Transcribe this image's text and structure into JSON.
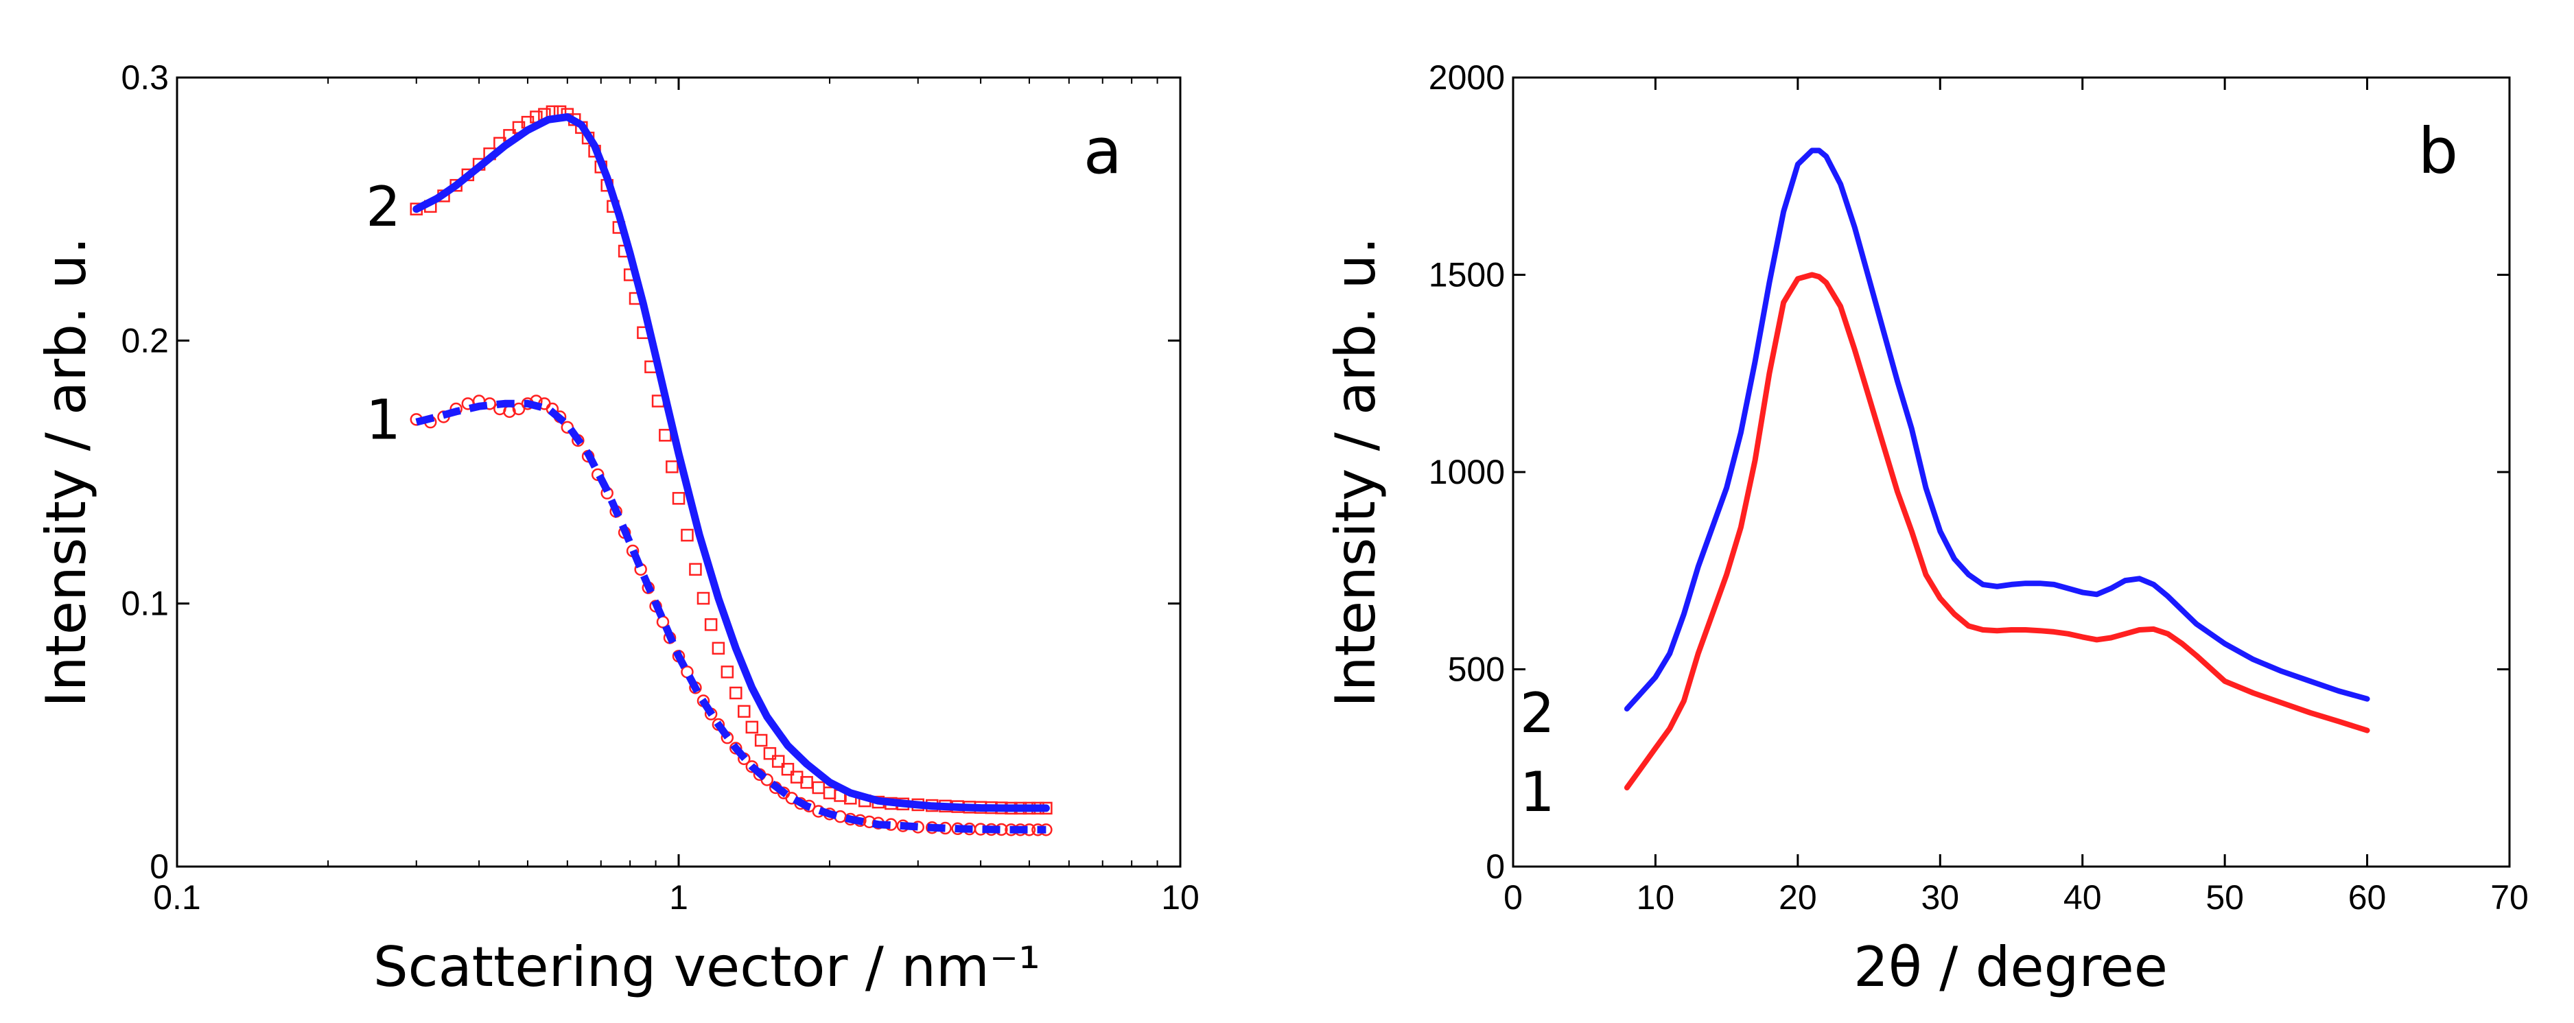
{
  "colors": {
    "fit": "#1a1aff",
    "data": "#ff2020",
    "axis": "#000000",
    "background": "#ffffff"
  },
  "chart_data": [
    {
      "id": "a",
      "type": "scatter",
      "panel_label": "a",
      "xlabel": "Scattering vector / nm⁻¹",
      "ylabel": "Intensity / arb. u.",
      "xscale": "log",
      "xlim": [
        0.1,
        10
      ],
      "ylim": [
        0,
        0.3
      ],
      "xticks": [
        0.1,
        1,
        10
      ],
      "xtick_labels": [
        "0.1",
        "1",
        "10"
      ],
      "yticks": [
        0,
        0.1,
        0.2,
        0.3
      ],
      "ytick_labels": [
        "0",
        "0.1",
        "0.2",
        "0.3"
      ],
      "curve_labels": [
        {
          "text": "2",
          "x": 0.29,
          "y": 0.251
        },
        {
          "text": "1",
          "x": 0.29,
          "y": 0.17
        }
      ],
      "series": [
        {
          "name": "1 (data)",
          "marker": "circle",
          "color": "#ff2020",
          "x": [
            0.3,
            0.32,
            0.34,
            0.36,
            0.38,
            0.4,
            0.42,
            0.44,
            0.46,
            0.48,
            0.5,
            0.52,
            0.54,
            0.56,
            0.58,
            0.6,
            0.63,
            0.66,
            0.69,
            0.72,
            0.75,
            0.78,
            0.81,
            0.84,
            0.87,
            0.9,
            0.93,
            0.96,
            1.0,
            1.04,
            1.08,
            1.12,
            1.16,
            1.2,
            1.25,
            1.3,
            1.35,
            1.4,
            1.45,
            1.5,
            1.56,
            1.62,
            1.68,
            1.75,
            1.82,
            1.9,
            2.0,
            2.1,
            2.2,
            2.3,
            2.4,
            2.5,
            2.65,
            2.8,
            3.0,
            3.2,
            3.4,
            3.6,
            3.8,
            4.0,
            4.2,
            4.4,
            4.6,
            4.8,
            5.0,
            5.2,
            5.4
          ],
          "y": [
            0.17,
            0.169,
            0.171,
            0.174,
            0.176,
            0.177,
            0.176,
            0.174,
            0.173,
            0.174,
            0.176,
            0.177,
            0.176,
            0.174,
            0.171,
            0.167,
            0.162,
            0.156,
            0.149,
            0.142,
            0.135,
            0.127,
            0.12,
            0.113,
            0.106,
            0.099,
            0.093,
            0.087,
            0.08,
            0.074,
            0.068,
            0.063,
            0.058,
            0.054,
            0.049,
            0.045,
            0.041,
            0.038,
            0.035,
            0.033,
            0.03,
            0.028,
            0.026,
            0.024,
            0.023,
            0.021,
            0.02,
            0.019,
            0.018,
            0.0175,
            0.017,
            0.0165,
            0.016,
            0.0155,
            0.015,
            0.0148,
            0.0146,
            0.0144,
            0.0143,
            0.0142,
            0.0141,
            0.0141,
            0.014,
            0.014,
            0.014,
            0.014,
            0.014
          ]
        },
        {
          "name": "1 (fit)",
          "line": "dashed",
          "color": "#1a1aff",
          "x": [
            0.3,
            0.33,
            0.36,
            0.4,
            0.45,
            0.5,
            0.55,
            0.6,
            0.66,
            0.72,
            0.78,
            0.85,
            0.92,
            1.0,
            1.1,
            1.2,
            1.3,
            1.4,
            1.5,
            1.65,
            1.8,
            2.0,
            2.2,
            2.5,
            2.8,
            3.2,
            3.6,
            4.0,
            4.5,
            5.0,
            5.4
          ],
          "y": [
            0.169,
            0.171,
            0.173,
            0.175,
            0.176,
            0.176,
            0.174,
            0.168,
            0.157,
            0.143,
            0.128,
            0.111,
            0.096,
            0.08,
            0.065,
            0.054,
            0.045,
            0.038,
            0.033,
            0.027,
            0.023,
            0.02,
            0.018,
            0.016,
            0.0155,
            0.0148,
            0.0144,
            0.0142,
            0.014,
            0.014,
            0.014
          ]
        },
        {
          "name": "2 (data)",
          "marker": "square",
          "color": "#ff2020",
          "x": [
            0.3,
            0.32,
            0.34,
            0.36,
            0.38,
            0.4,
            0.42,
            0.44,
            0.46,
            0.48,
            0.5,
            0.52,
            0.54,
            0.56,
            0.58,
            0.6,
            0.62,
            0.64,
            0.66,
            0.68,
            0.7,
            0.72,
            0.74,
            0.76,
            0.78,
            0.8,
            0.82,
            0.85,
            0.88,
            0.91,
            0.94,
            0.97,
            1.0,
            1.04,
            1.08,
            1.12,
            1.16,
            1.2,
            1.25,
            1.3,
            1.35,
            1.4,
            1.46,
            1.52,
            1.58,
            1.65,
            1.72,
            1.8,
            1.9,
            2.0,
            2.1,
            2.2,
            2.35,
            2.5,
            2.65,
            2.8,
            3.0,
            3.2,
            3.4,
            3.6,
            3.8,
            4.0,
            4.2,
            4.4,
            4.6,
            4.8,
            5.0,
            5.2,
            5.4
          ],
          "y": [
            0.25,
            0.251,
            0.255,
            0.259,
            0.263,
            0.267,
            0.271,
            0.275,
            0.278,
            0.281,
            0.283,
            0.285,
            0.286,
            0.287,
            0.287,
            0.286,
            0.284,
            0.281,
            0.277,
            0.272,
            0.266,
            0.259,
            0.251,
            0.243,
            0.234,
            0.225,
            0.216,
            0.203,
            0.19,
            0.177,
            0.164,
            0.152,
            0.14,
            0.126,
            0.113,
            0.102,
            0.092,
            0.083,
            0.074,
            0.066,
            0.059,
            0.053,
            0.048,
            0.043,
            0.04,
            0.037,
            0.034,
            0.032,
            0.03,
            0.028,
            0.027,
            0.026,
            0.025,
            0.0245,
            0.024,
            0.0238,
            0.0235,
            0.0232,
            0.023,
            0.0228,
            0.0226,
            0.0225,
            0.0224,
            0.0223,
            0.0222,
            0.0222,
            0.0222,
            0.0222,
            0.0222
          ]
        },
        {
          "name": "2 (fit)",
          "line": "solid",
          "color": "#1a1aff",
          "x": [
            0.3,
            0.33,
            0.36,
            0.4,
            0.45,
            0.5,
            0.55,
            0.6,
            0.64,
            0.68,
            0.72,
            0.76,
            0.8,
            0.85,
            0.9,
            0.95,
            1.0,
            1.1,
            1.2,
            1.3,
            1.4,
            1.5,
            1.65,
            1.8,
            2.0,
            2.2,
            2.5,
            2.8,
            3.2,
            3.6,
            4.0,
            4.5,
            5.0,
            5.4
          ],
          "y": [
            0.25,
            0.254,
            0.259,
            0.266,
            0.274,
            0.28,
            0.284,
            0.285,
            0.282,
            0.274,
            0.262,
            0.248,
            0.233,
            0.214,
            0.194,
            0.175,
            0.157,
            0.126,
            0.102,
            0.083,
            0.068,
            0.057,
            0.046,
            0.039,
            0.032,
            0.028,
            0.025,
            0.024,
            0.023,
            0.0226,
            0.0223,
            0.0222,
            0.0222,
            0.0222
          ]
        }
      ]
    },
    {
      "id": "b",
      "type": "line",
      "panel_label": "b",
      "xlabel": "2θ / degree",
      "ylabel": "Intensity / arb. u.",
      "xlim": [
        0,
        70
      ],
      "ylim": [
        0,
        2000
      ],
      "xticks": [
        0,
        10,
        20,
        30,
        40,
        50,
        60,
        70
      ],
      "xtick_labels": [
        "0",
        "10",
        "20",
        "30",
        "40",
        "50",
        "60",
        "70"
      ],
      "yticks": [
        0,
        500,
        1000,
        1500,
        2000
      ],
      "ytick_labels": [
        "0",
        "500",
        "1000",
        "1500",
        "2000"
      ],
      "curve_labels": [
        {
          "text": "2",
          "x": 3.5,
          "y": 390
        },
        {
          "text": "1",
          "x": 3.5,
          "y": 190
        }
      ],
      "series": [
        {
          "name": "2",
          "color": "#1a1aff",
          "x": [
            8,
            9,
            10,
            11,
            12,
            13,
            14,
            15,
            16,
            17,
            18,
            19,
            20,
            21,
            21.5,
            22,
            23,
            24,
            25,
            26,
            27,
            28,
            29,
            30,
            31,
            32,
            33,
            34,
            35,
            36,
            37,
            38,
            39,
            40,
            41,
            42,
            43,
            44,
            45,
            46,
            47,
            48,
            50,
            52,
            54,
            56,
            58,
            60
          ],
          "y": [
            400,
            440,
            480,
            540,
            640,
            760,
            860,
            960,
            1100,
            1280,
            1480,
            1660,
            1780,
            1815,
            1815,
            1800,
            1730,
            1620,
            1490,
            1360,
            1230,
            1110,
            960,
            850,
            780,
            740,
            715,
            710,
            715,
            718,
            718,
            715,
            705,
            695,
            690,
            705,
            725,
            730,
            715,
            685,
            650,
            615,
            565,
            525,
            495,
            470,
            445,
            425
          ]
        },
        {
          "name": "1",
          "color": "#ff2020",
          "x": [
            8,
            9,
            10,
            11,
            12,
            13,
            14,
            15,
            16,
            17,
            18,
            19,
            20,
            21,
            21.5,
            22,
            23,
            24,
            25,
            26,
            27,
            28,
            29,
            30,
            31,
            32,
            33,
            34,
            35,
            36,
            37,
            38,
            39,
            40,
            41,
            42,
            43,
            44,
            45,
            46,
            47,
            48,
            50,
            52,
            54,
            56,
            58,
            60
          ],
          "y": [
            200,
            250,
            300,
            350,
            420,
            540,
            640,
            740,
            860,
            1030,
            1250,
            1430,
            1490,
            1500,
            1495,
            1480,
            1420,
            1310,
            1190,
            1070,
            950,
            850,
            740,
            680,
            640,
            610,
            600,
            598,
            600,
            600,
            598,
            595,
            590,
            582,
            575,
            580,
            590,
            600,
            602,
            590,
            565,
            535,
            470,
            440,
            415,
            390,
            368,
            345
          ]
        }
      ]
    }
  ]
}
